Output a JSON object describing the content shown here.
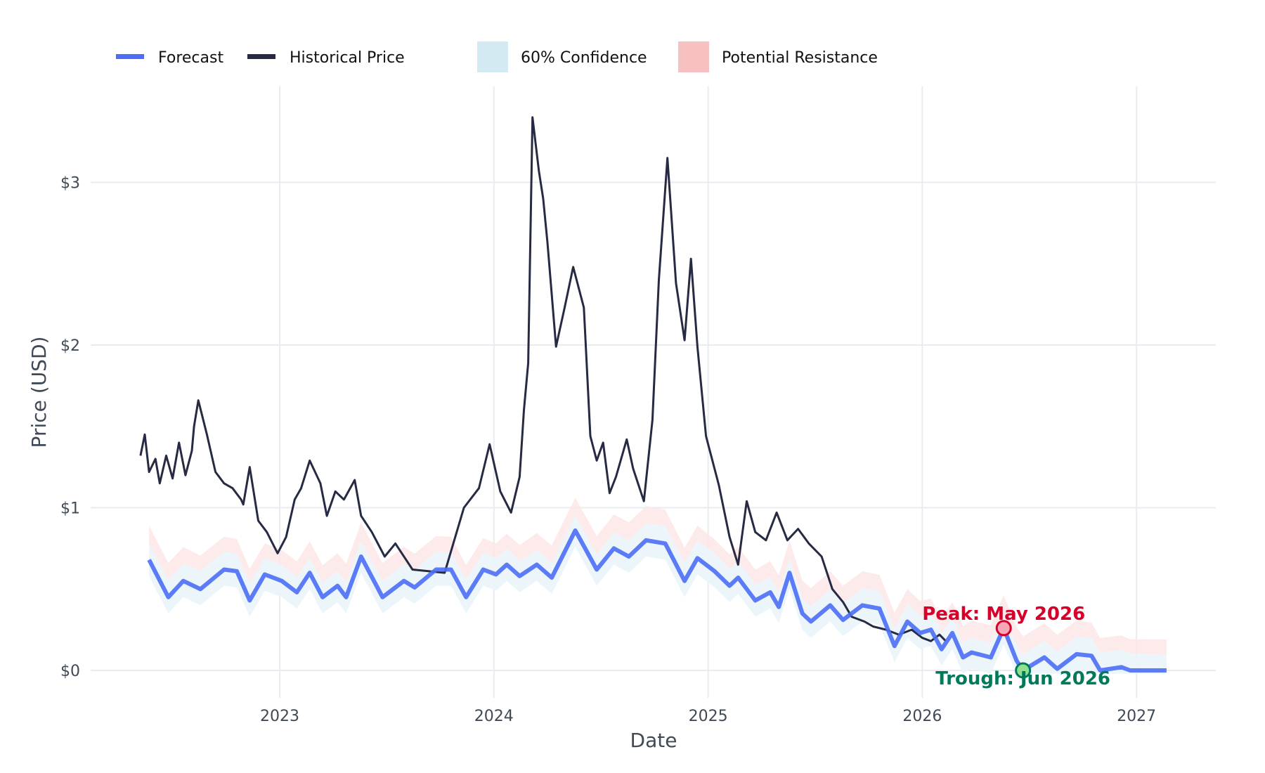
{
  "chart_data": {
    "type": "line",
    "title": "",
    "xlabel": "Date",
    "ylabel": "Price (USD)",
    "xlim": [
      2022.0,
      2027.4
    ],
    "ylim": [
      -0.15,
      3.6
    ],
    "grid": true,
    "legend_position": "top-left",
    "x_ticks": [
      {
        "value": 2023,
        "label": "2023"
      },
      {
        "value": 2024,
        "label": "2024"
      },
      {
        "value": 2025,
        "label": "2025"
      },
      {
        "value": 2026,
        "label": "2026"
      },
      {
        "value": 2027,
        "label": "2027"
      }
    ],
    "y_ticks": [
      {
        "value": 0,
        "label": "$0"
      },
      {
        "value": 1,
        "label": "$1"
      },
      {
        "value": 2,
        "label": "$2"
      },
      {
        "value": 3,
        "label": "$3"
      }
    ],
    "legend": [
      {
        "key": "forecast",
        "label": "Forecast",
        "kind": "line"
      },
      {
        "key": "historical",
        "label": "Historical Price",
        "kind": "line"
      },
      {
        "key": "confidence",
        "label": "60% Confidence",
        "kind": "box"
      },
      {
        "key": "resistance",
        "label": "Potential Resistance",
        "kind": "box"
      }
    ],
    "colors": {
      "forecast": "#4c6ef5",
      "historical": "#262a42",
      "confidence": "#d3eaf2",
      "resistance": "#f7c1c1",
      "peak": "#d6002a",
      "peak_fill": "#f7a8b8",
      "trough": "#007a5a",
      "trough_fill": "#8fe08f",
      "grid": "#e9ebf0"
    },
    "series": [
      {
        "name": "Historical Price",
        "x": [
          2022.35,
          2022.37,
          2022.39,
          2022.42,
          2022.44,
          2022.47,
          2022.5,
          2022.53,
          2022.56,
          2022.59,
          2022.6,
          2022.62,
          2022.66,
          2022.7,
          2022.74,
          2022.78,
          2022.82,
          2022.83,
          2022.86,
          2022.9,
          2022.94,
          2022.99,
          2023.03,
          2023.07,
          2023.1,
          2023.14,
          2023.19,
          2023.22,
          2023.26,
          2023.3,
          2023.35,
          2023.38,
          2023.43,
          2023.49,
          2023.54,
          2023.62,
          2023.77,
          2023.86,
          2023.93,
          2023.98,
          2024.03,
          2024.08,
          2024.12,
          2024.14,
          2024.16,
          2024.18,
          2024.21,
          2024.23,
          2024.25,
          2024.29,
          2024.33,
          2024.37,
          2024.42,
          2024.45,
          2024.48,
          2024.51,
          2024.54,
          2024.57,
          2024.62,
          2024.65,
          2024.7,
          2024.74,
          2024.77,
          2024.81,
          2024.85,
          2024.89,
          2024.92,
          2024.95,
          2024.99,
          2025.05,
          2025.1,
          2025.14,
          2025.18,
          2025.22,
          2025.27,
          2025.32,
          2025.37,
          2025.42,
          2025.47,
          2025.53,
          2025.58,
          2025.63,
          2025.67,
          2025.73,
          2025.77,
          2025.83,
          2025.89,
          2025.95,
          2026.0,
          2026.04,
          2026.08,
          2026.11
        ],
        "y": [
          1.32,
          1.45,
          1.22,
          1.3,
          1.15,
          1.32,
          1.18,
          1.4,
          1.2,
          1.35,
          1.5,
          1.66,
          1.45,
          1.22,
          1.15,
          1.12,
          1.05,
          1.02,
          1.25,
          0.92,
          0.85,
          0.72,
          0.82,
          1.05,
          1.12,
          1.29,
          1.15,
          0.95,
          1.1,
          1.05,
          1.17,
          0.95,
          0.85,
          0.7,
          0.78,
          0.62,
          0.6,
          1.0,
          1.12,
          1.39,
          1.1,
          0.97,
          1.19,
          1.6,
          1.89,
          3.4,
          3.07,
          2.9,
          2.63,
          1.99,
          2.23,
          2.48,
          2.23,
          1.44,
          1.29,
          1.4,
          1.09,
          1.19,
          1.42,
          1.24,
          1.04,
          1.54,
          2.4,
          3.15,
          2.38,
          2.03,
          2.53,
          1.99,
          1.44,
          1.14,
          0.82,
          0.65,
          1.04,
          0.85,
          0.8,
          0.97,
          0.8,
          0.87,
          0.78,
          0.7,
          0.5,
          0.42,
          0.33,
          0.3,
          0.27,
          0.25,
          0.22,
          0.25,
          0.2,
          0.18,
          0.22,
          0.18
        ]
      },
      {
        "name": "Forecast",
        "x": [
          2022.39,
          2022.48,
          2022.55,
          2022.63,
          2022.74,
          2022.8,
          2022.86,
          2022.93,
          2023.01,
          2023.08,
          2023.14,
          2023.2,
          2023.27,
          2023.31,
          2023.38,
          2023.48,
          2023.58,
          2023.63,
          2023.73,
          2023.8,
          2023.87,
          2023.95,
          2024.01,
          2024.06,
          2024.12,
          2024.2,
          2024.27,
          2024.38,
          2024.48,
          2024.56,
          2024.63,
          2024.71,
          2024.8,
          2024.89,
          2024.95,
          2025.03,
          2025.1,
          2025.14,
          2025.22,
          2025.29,
          2025.33,
          2025.38,
          2025.44,
          2025.48,
          2025.57,
          2025.63,
          2025.72,
          2025.8,
          2025.87,
          2025.93,
          2025.99,
          2026.04,
          2026.09,
          2026.14,
          2026.19,
          2026.23,
          2026.32,
          2026.38,
          2026.44,
          2026.47,
          2026.57,
          2026.63,
          2026.72,
          2026.79,
          2026.83,
          2026.93,
          2026.97,
          2027.14
        ],
        "y": [
          0.68,
          0.45,
          0.55,
          0.5,
          0.62,
          0.61,
          0.43,
          0.59,
          0.55,
          0.48,
          0.6,
          0.45,
          0.52,
          0.45,
          0.7,
          0.45,
          0.55,
          0.51,
          0.62,
          0.62,
          0.45,
          0.62,
          0.59,
          0.65,
          0.58,
          0.65,
          0.57,
          0.86,
          0.62,
          0.75,
          0.7,
          0.8,
          0.78,
          0.55,
          0.69,
          0.61,
          0.52,
          0.57,
          0.43,
          0.48,
          0.39,
          0.6,
          0.35,
          0.3,
          0.4,
          0.31,
          0.4,
          0.38,
          0.15,
          0.3,
          0.23,
          0.25,
          0.13,
          0.23,
          0.08,
          0.11,
          0.08,
          0.26,
          0.06,
          0.0,
          0.08,
          0.01,
          0.1,
          0.09,
          0.0,
          0.02,
          0.0,
          0.0
        ]
      }
    ],
    "confidence_band": {
      "label": "60% Confidence",
      "half_width": 0.1
    },
    "resistance_band": {
      "label": "Potential Resistance",
      "offset_low": 0.1,
      "offset_high": 0.2
    },
    "annotations": [
      {
        "key": "peak",
        "label": "Peak: May 2026",
        "x": 2026.38,
        "y": 0.26
      },
      {
        "key": "trough",
        "label": "Trough: Jun 2026",
        "x": 2026.47,
        "y": 0.0
      }
    ]
  }
}
